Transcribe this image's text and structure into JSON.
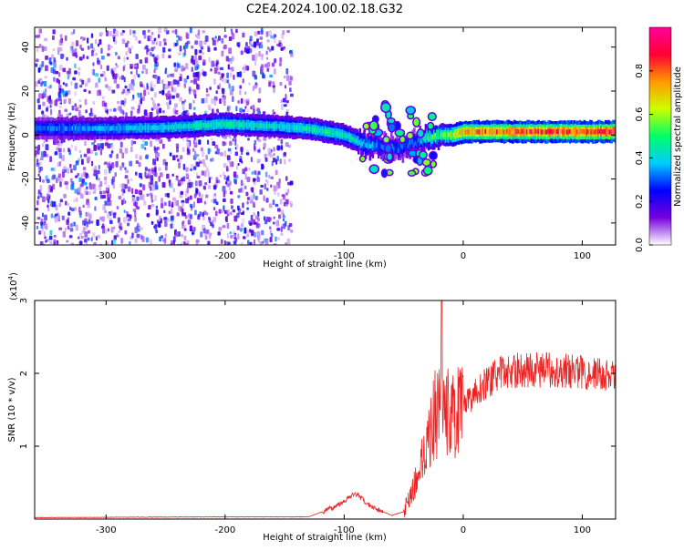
{
  "figure": {
    "title": "C2E4.2024.100.02.18.G32"
  },
  "chart_data": [
    {
      "type": "heatmap",
      "xlabel": "Height of straight line (km)",
      "ylabel": "Frequency (Hz)",
      "xlim": [
        -360,
        128
      ],
      "ylim": [
        -50,
        49
      ],
      "x_ticks": [
        -300,
        -200,
        -100,
        0,
        100
      ],
      "x_tick_labels": [
        "-300",
        "-200",
        "-100",
        "0",
        "100"
      ],
      "y_ticks": [
        -40,
        -20,
        0,
        20,
        40
      ],
      "y_tick_labels": [
        "-40",
        "-20",
        "0",
        "20",
        "40"
      ],
      "colorbar": {
        "label": "Normalized spectral amplitude",
        "range": [
          0,
          1
        ],
        "ticks": [
          0,
          0.2,
          0.4,
          0.6,
          0.8
        ],
        "tick_labels": [
          "0.0",
          "0.2",
          "0.4",
          "0.6",
          "0.8"
        ],
        "colormap": [
          "#ffffff",
          "#7700dd",
          "#0000ff",
          "#00ccff",
          "#00ff66",
          "#ccff00",
          "#ff9900",
          "#ff0033",
          "#ff0099"
        ]
      },
      "ridge": {
        "x": [
          -360,
          -300,
          -250,
          -200,
          -160,
          -130,
          -100,
          -85,
          -70,
          -55,
          -40,
          -30,
          -20,
          -10,
          0,
          50,
          128
        ],
        "frequency": [
          3,
          3,
          3.5,
          5,
          4,
          3,
          0,
          -4,
          -5,
          -6,
          -3,
          -1,
          0,
          0,
          1.5,
          1.5,
          1.5
        ],
        "amplitude": [
          0.3,
          0.35,
          0.4,
          0.45,
          0.4,
          0.45,
          0.45,
          0.4,
          0.3,
          0.3,
          0.3,
          0.5,
          0.5,
          0.6,
          0.75,
          0.8,
          0.85
        ]
      },
      "grid": false
    },
    {
      "type": "line",
      "xlabel": "Height of straight line (km)",
      "ylabel": "SNR (10 * v/v)",
      "y_multiplier_label": "(x10",
      "y_multiplier_exp": "4",
      "xlim": [
        -360,
        128
      ],
      "ylim": [
        0,
        3
      ],
      "x_ticks": [
        -300,
        -200,
        -100,
        0,
        100
      ],
      "x_tick_labels": [
        "-300",
        "-200",
        "-100",
        "0",
        "100"
      ],
      "y_ticks": [
        1,
        2,
        3
      ],
      "y_tick_labels": [
        "1",
        "2",
        "3"
      ],
      "line_color": "#ee2222",
      "series_envelope": {
        "x": [
          -360,
          -200,
          -130,
          -110,
          -100,
          -90,
          -80,
          -70,
          -60,
          -50,
          -40,
          -30,
          -20,
          -10,
          0,
          10,
          30,
          50,
          80,
          110,
          128
        ],
        "y": [
          0.02,
          0.03,
          0.03,
          0.15,
          0.25,
          0.35,
          0.2,
          0.12,
          0.05,
          0.1,
          0.5,
          1.1,
          1.6,
          1.4,
          1.5,
          1.75,
          2.0,
          2.05,
          2.05,
          2.0,
          1.95
        ]
      },
      "spike": {
        "x": -18,
        "y": 3.0
      },
      "grid": false
    }
  ]
}
